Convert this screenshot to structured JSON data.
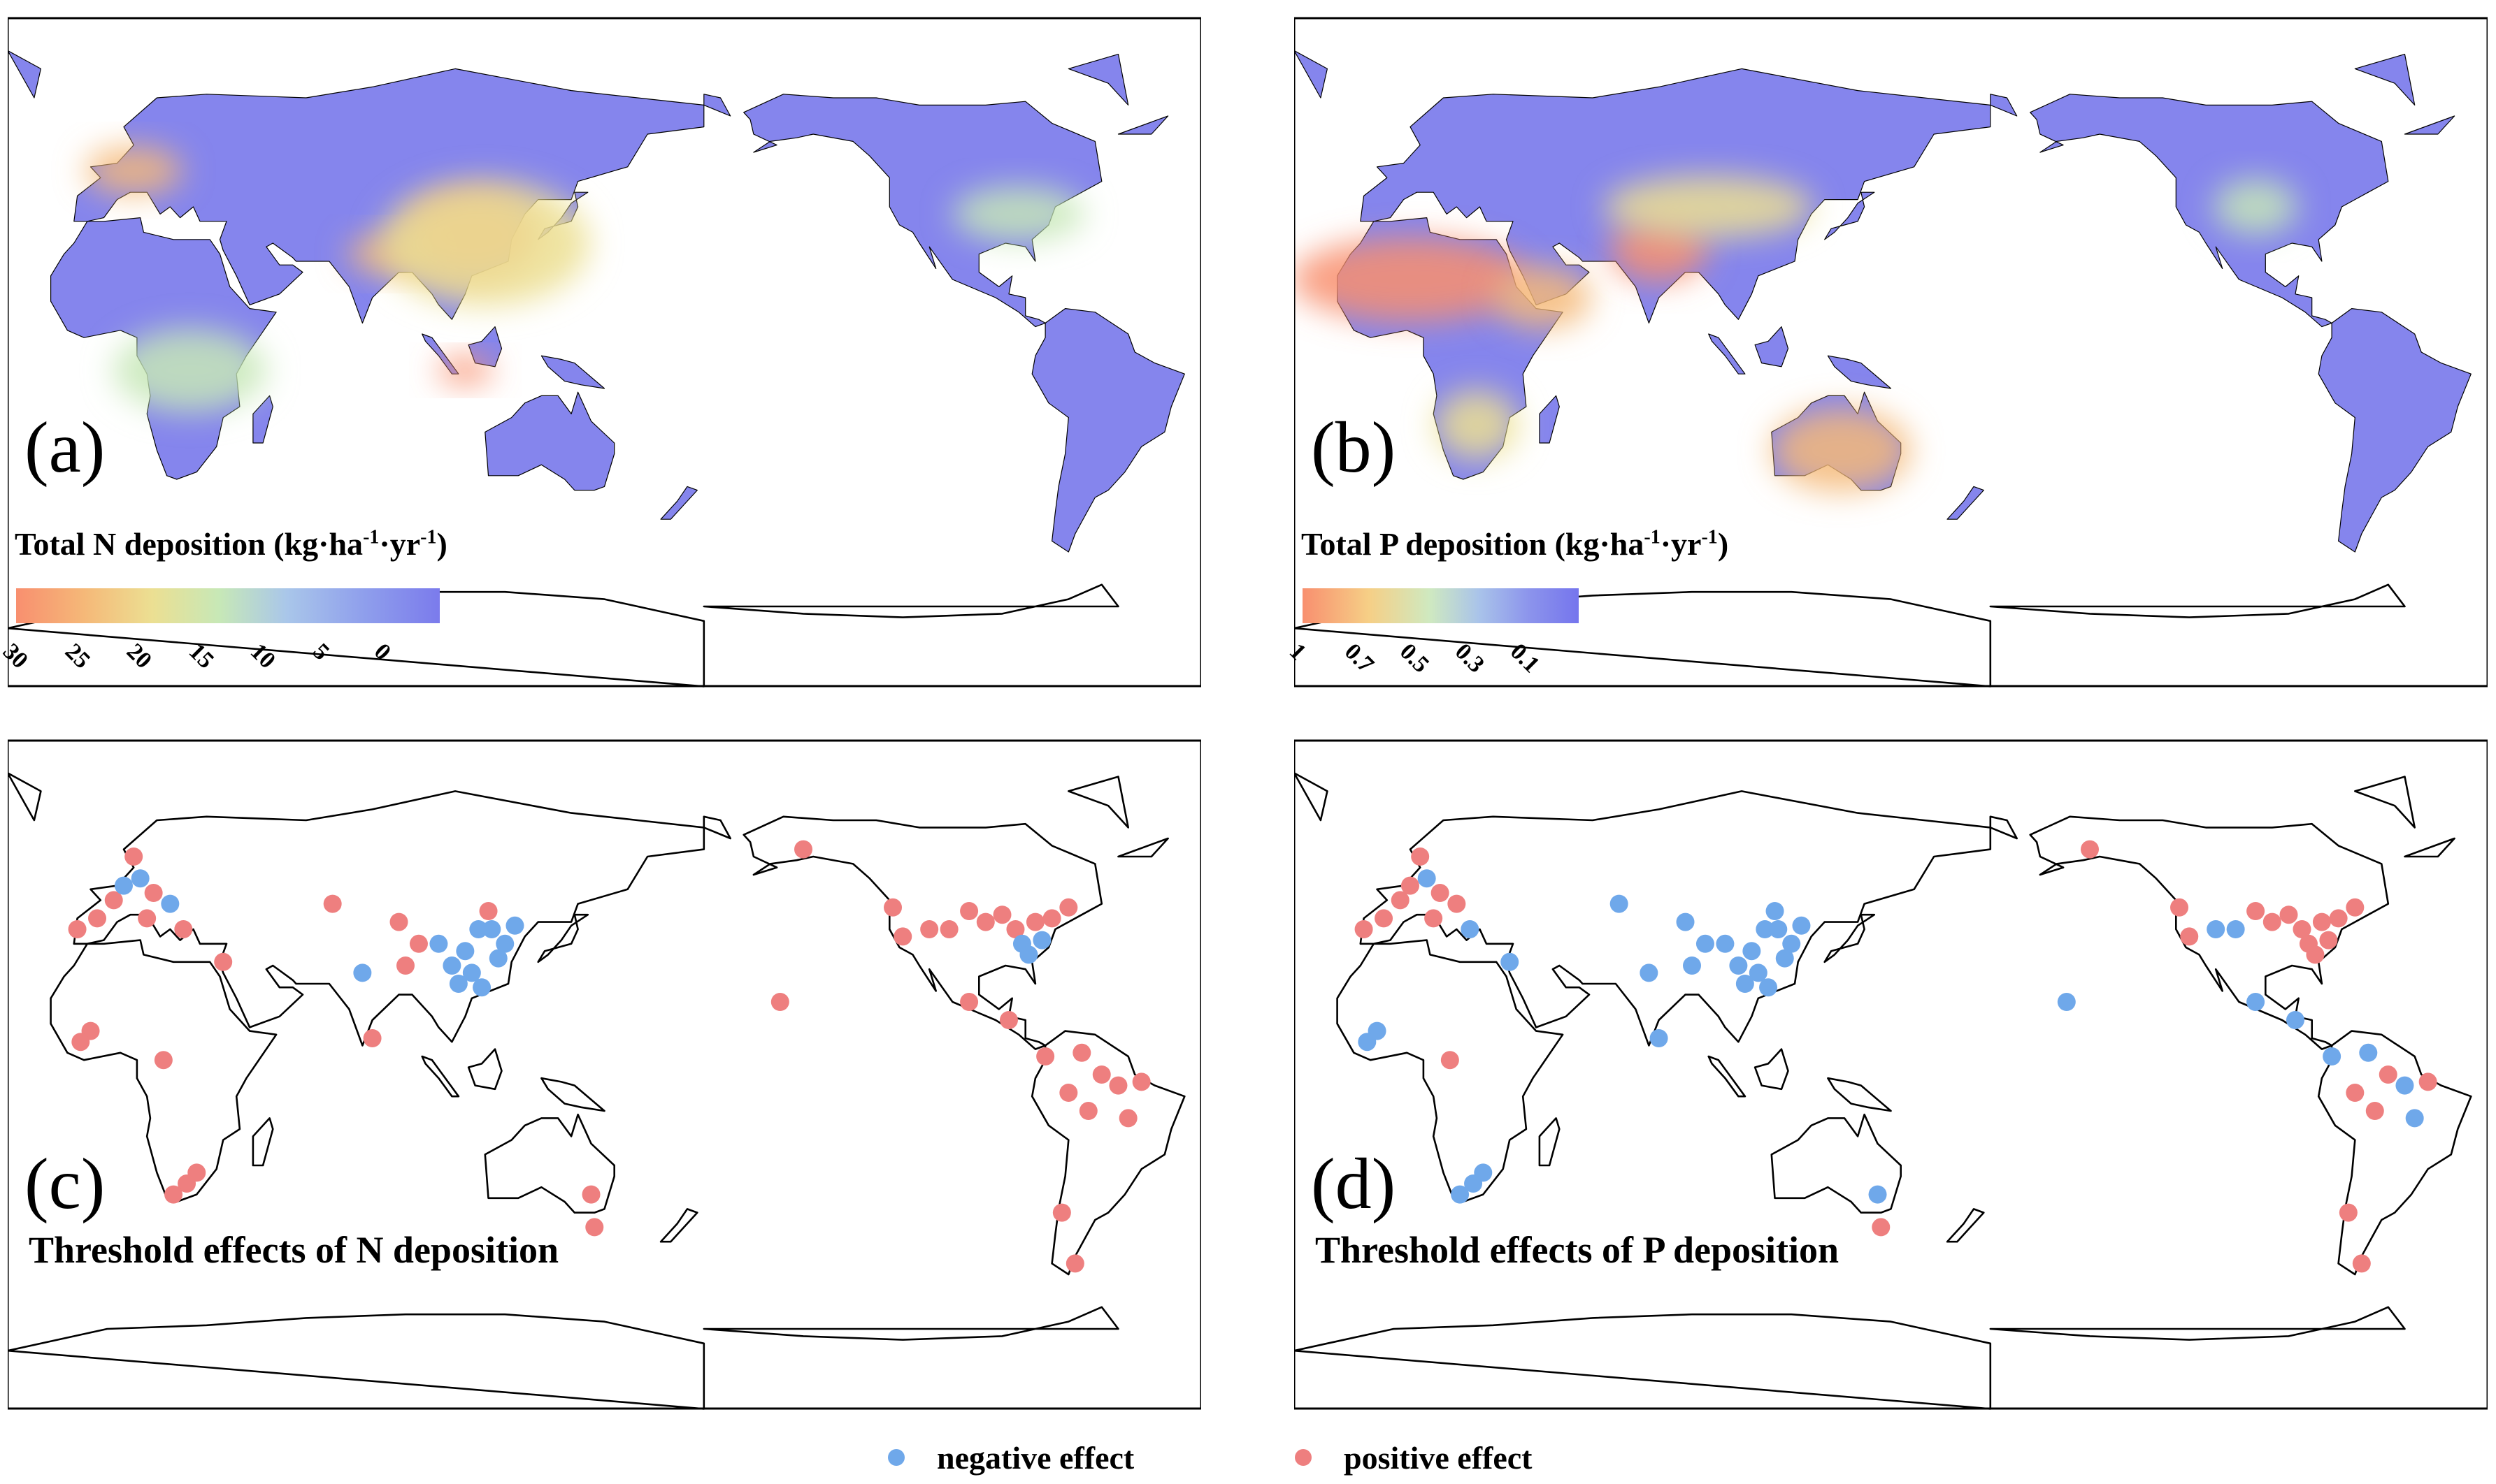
{
  "colors": {
    "land_low": "#7b7bec",
    "land_high": "#f88f6f",
    "negative_effect": "#6fa8ea",
    "positive_effect": "#ee7f7f",
    "coastline": "#000000"
  },
  "panels": {
    "a": {
      "letter": "(a)",
      "colorbar_title_prefix": "Total N deposition (kg·ha",
      "colorbar_title_sup1": "-1",
      "colorbar_title_mid": "·yr",
      "colorbar_title_sup2": "-1",
      "colorbar_title_suffix": ")",
      "colorbar_ticks": [
        "30",
        "25",
        "20",
        "15",
        "10",
        "5",
        "0"
      ]
    },
    "b": {
      "letter": "(b)",
      "colorbar_title_prefix": "Total P deposition (kg·ha",
      "colorbar_title_sup1": "-1",
      "colorbar_title_mid": "·yr",
      "colorbar_title_sup2": "-1",
      "colorbar_title_suffix": ")",
      "colorbar_ticks": [
        "1",
        "0.7",
        "0.5",
        "0.3",
        "0.1"
      ]
    },
    "c": {
      "letter": "(c)",
      "title": "Threshold effects of N deposition",
      "sites": [
        {
          "lon": -9,
          "lat": 40,
          "effect": "positive"
        },
        {
          "lon": -3,
          "lat": 43,
          "effect": "positive"
        },
        {
          "lon": 2,
          "lat": 48,
          "effect": "positive"
        },
        {
          "lon": 5,
          "lat": 52,
          "effect": "negative"
        },
        {
          "lon": 10,
          "lat": 54,
          "effect": "negative"
        },
        {
          "lon": 8,
          "lat": 60,
          "effect": "positive"
        },
        {
          "lon": 14,
          "lat": 50,
          "effect": "positive"
        },
        {
          "lon": 19,
          "lat": 47,
          "effect": "negative"
        },
        {
          "lon": 12,
          "lat": 43,
          "effect": "positive"
        },
        {
          "lon": 23,
          "lat": 40,
          "effect": "positive"
        },
        {
          "lon": 35,
          "lat": 31,
          "effect": "positive"
        },
        {
          "lon": 68,
          "lat": 47,
          "effect": "positive"
        },
        {
          "lon": 88,
          "lat": 42,
          "effect": "positive"
        },
        {
          "lon": 94,
          "lat": 36,
          "effect": "positive"
        },
        {
          "lon": 100,
          "lat": 36,
          "effect": "negative"
        },
        {
          "lon": 104,
          "lat": 30,
          "effect": "negative"
        },
        {
          "lon": 108,
          "lat": 34,
          "effect": "negative"
        },
        {
          "lon": 110,
          "lat": 28,
          "effect": "negative"
        },
        {
          "lon": 112,
          "lat": 40,
          "effect": "negative"
        },
        {
          "lon": 116,
          "lat": 40,
          "effect": "negative"
        },
        {
          "lon": 118,
          "lat": 32,
          "effect": "negative"
        },
        {
          "lon": 120,
          "lat": 36,
          "effect": "negative"
        },
        {
          "lon": 123,
          "lat": 41,
          "effect": "negative"
        },
        {
          "lon": 115,
          "lat": 45,
          "effect": "positive"
        },
        {
          "lon": 106,
          "lat": 25,
          "effect": "negative"
        },
        {
          "lon": 113,
          "lat": 24,
          "effect": "negative"
        },
        {
          "lon": 77,
          "lat": 28,
          "effect": "negative"
        },
        {
          "lon": 80,
          "lat": 10,
          "effect": "positive"
        },
        {
          "lon": 90,
          "lat": 30,
          "effect": "positive"
        },
        {
          "lon": -5,
          "lat": 12,
          "effect": "positive"
        },
        {
          "lon": -8,
          "lat": 9,
          "effect": "positive"
        },
        {
          "lon": 17,
          "lat": 4,
          "effect": "positive"
        },
        {
          "lon": 27,
          "lat": -27,
          "effect": "positive"
        },
        {
          "lon": 24,
          "lat": -30,
          "effect": "positive"
        },
        {
          "lon": 20,
          "lat": -33,
          "effect": "positive"
        },
        {
          "lon": 146,
          "lat": -33,
          "effect": "positive"
        },
        {
          "lon": 147,
          "lat": -42,
          "effect": "positive"
        },
        {
          "lon": -157,
          "lat": 20,
          "effect": "positive"
        },
        {
          "lon": -150,
          "lat": 62,
          "effect": "positive"
        },
        {
          "lon": -123,
          "lat": 46,
          "effect": "positive"
        },
        {
          "lon": -120,
          "lat": 38,
          "effect": "positive"
        },
        {
          "lon": -112,
          "lat": 40,
          "effect": "positive"
        },
        {
          "lon": -106,
          "lat": 40,
          "effect": "positive"
        },
        {
          "lon": -100,
          "lat": 45,
          "effect": "positive"
        },
        {
          "lon": -95,
          "lat": 42,
          "effect": "positive"
        },
        {
          "lon": -90,
          "lat": 44,
          "effect": "positive"
        },
        {
          "lon": -86,
          "lat": 40,
          "effect": "positive"
        },
        {
          "lon": -80,
          "lat": 42,
          "effect": "positive"
        },
        {
          "lon": -75,
          "lat": 43,
          "effect": "positive"
        },
        {
          "lon": -84,
          "lat": 36,
          "effect": "negative"
        },
        {
          "lon": -78,
          "lat": 37,
          "effect": "negative"
        },
        {
          "lon": -82,
          "lat": 33,
          "effect": "negative"
        },
        {
          "lon": -70,
          "lat": 46,
          "effect": "positive"
        },
        {
          "lon": -100,
          "lat": 20,
          "effect": "positive"
        },
        {
          "lon": -88,
          "lat": 15,
          "effect": "positive"
        },
        {
          "lon": -77,
          "lat": 5,
          "effect": "positive"
        },
        {
          "lon": -66,
          "lat": 6,
          "effect": "positive"
        },
        {
          "lon": -60,
          "lat": 0,
          "effect": "positive"
        },
        {
          "lon": -70,
          "lat": -5,
          "effect": "positive"
        },
        {
          "lon": -64,
          "lat": -10,
          "effect": "positive"
        },
        {
          "lon": -55,
          "lat": -3,
          "effect": "positive"
        },
        {
          "lon": -48,
          "lat": -2,
          "effect": "positive"
        },
        {
          "lon": -52,
          "lat": -12,
          "effect": "positive"
        },
        {
          "lon": -72,
          "lat": -38,
          "effect": "positive"
        },
        {
          "lon": -68,
          "lat": -52,
          "effect": "positive"
        }
      ]
    },
    "d": {
      "letter": "(d)",
      "title": "Threshold effects of P deposition",
      "sites": [
        {
          "lon": -9,
          "lat": 40,
          "effect": "positive"
        },
        {
          "lon": -3,
          "lat": 43,
          "effect": "positive"
        },
        {
          "lon": 2,
          "lat": 48,
          "effect": "positive"
        },
        {
          "lon": 5,
          "lat": 52,
          "effect": "positive"
        },
        {
          "lon": 10,
          "lat": 54,
          "effect": "negative"
        },
        {
          "lon": 8,
          "lat": 60,
          "effect": "positive"
        },
        {
          "lon": 14,
          "lat": 50,
          "effect": "positive"
        },
        {
          "lon": 19,
          "lat": 47,
          "effect": "positive"
        },
        {
          "lon": 12,
          "lat": 43,
          "effect": "positive"
        },
        {
          "lon": 23,
          "lat": 40,
          "effect": "negative"
        },
        {
          "lon": 35,
          "lat": 31,
          "effect": "negative"
        },
        {
          "lon": 68,
          "lat": 47,
          "effect": "negative"
        },
        {
          "lon": 88,
          "lat": 42,
          "effect": "negative"
        },
        {
          "lon": 94,
          "lat": 36,
          "effect": "negative"
        },
        {
          "lon": 100,
          "lat": 36,
          "effect": "negative"
        },
        {
          "lon": 104,
          "lat": 30,
          "effect": "negative"
        },
        {
          "lon": 108,
          "lat": 34,
          "effect": "negative"
        },
        {
          "lon": 110,
          "lat": 28,
          "effect": "negative"
        },
        {
          "lon": 112,
          "lat": 40,
          "effect": "negative"
        },
        {
          "lon": 116,
          "lat": 40,
          "effect": "negative"
        },
        {
          "lon": 118,
          "lat": 32,
          "effect": "negative"
        },
        {
          "lon": 120,
          "lat": 36,
          "effect": "negative"
        },
        {
          "lon": 123,
          "lat": 41,
          "effect": "negative"
        },
        {
          "lon": 115,
          "lat": 45,
          "effect": "negative"
        },
        {
          "lon": 106,
          "lat": 25,
          "effect": "negative"
        },
        {
          "lon": 113,
          "lat": 24,
          "effect": "negative"
        },
        {
          "lon": 77,
          "lat": 28,
          "effect": "negative"
        },
        {
          "lon": 80,
          "lat": 10,
          "effect": "negative"
        },
        {
          "lon": 90,
          "lat": 30,
          "effect": "negative"
        },
        {
          "lon": -5,
          "lat": 12,
          "effect": "negative"
        },
        {
          "lon": -8,
          "lat": 9,
          "effect": "negative"
        },
        {
          "lon": 17,
          "lat": 4,
          "effect": "positive"
        },
        {
          "lon": 27,
          "lat": -27,
          "effect": "negative"
        },
        {
          "lon": 24,
          "lat": -30,
          "effect": "negative"
        },
        {
          "lon": 20,
          "lat": -33,
          "effect": "negative"
        },
        {
          "lon": 146,
          "lat": -33,
          "effect": "negative"
        },
        {
          "lon": 147,
          "lat": -42,
          "effect": "positive"
        },
        {
          "lon": -157,
          "lat": 20,
          "effect": "negative"
        },
        {
          "lon": -150,
          "lat": 62,
          "effect": "positive"
        },
        {
          "lon": -123,
          "lat": 46,
          "effect": "positive"
        },
        {
          "lon": -120,
          "lat": 38,
          "effect": "positive"
        },
        {
          "lon": -112,
          "lat": 40,
          "effect": "negative"
        },
        {
          "lon": -106,
          "lat": 40,
          "effect": "negative"
        },
        {
          "lon": -100,
          "lat": 45,
          "effect": "positive"
        },
        {
          "lon": -95,
          "lat": 42,
          "effect": "positive"
        },
        {
          "lon": -90,
          "lat": 44,
          "effect": "positive"
        },
        {
          "lon": -86,
          "lat": 40,
          "effect": "positive"
        },
        {
          "lon": -80,
          "lat": 42,
          "effect": "positive"
        },
        {
          "lon": -75,
          "lat": 43,
          "effect": "positive"
        },
        {
          "lon": -84,
          "lat": 36,
          "effect": "positive"
        },
        {
          "lon": -78,
          "lat": 37,
          "effect": "positive"
        },
        {
          "lon": -82,
          "lat": 33,
          "effect": "positive"
        },
        {
          "lon": -70,
          "lat": 46,
          "effect": "positive"
        },
        {
          "lon": -100,
          "lat": 20,
          "effect": "negative"
        },
        {
          "lon": -88,
          "lat": 15,
          "effect": "negative"
        },
        {
          "lon": -77,
          "lat": 5,
          "effect": "negative"
        },
        {
          "lon": -66,
          "lat": 6,
          "effect": "negative"
        },
        {
          "lon": -60,
          "lat": 0,
          "effect": "positive"
        },
        {
          "lon": -70,
          "lat": -5,
          "effect": "positive"
        },
        {
          "lon": -64,
          "lat": -10,
          "effect": "positive"
        },
        {
          "lon": -55,
          "lat": -3,
          "effect": "negative"
        },
        {
          "lon": -48,
          "lat": -2,
          "effect": "positive"
        },
        {
          "lon": -52,
          "lat": -12,
          "effect": "negative"
        },
        {
          "lon": -72,
          "lat": -38,
          "effect": "positive"
        },
        {
          "lon": -68,
          "lat": -52,
          "effect": "positive"
        }
      ]
    }
  },
  "legend": {
    "negative_label": "negative effect",
    "positive_label": "positive effect"
  }
}
